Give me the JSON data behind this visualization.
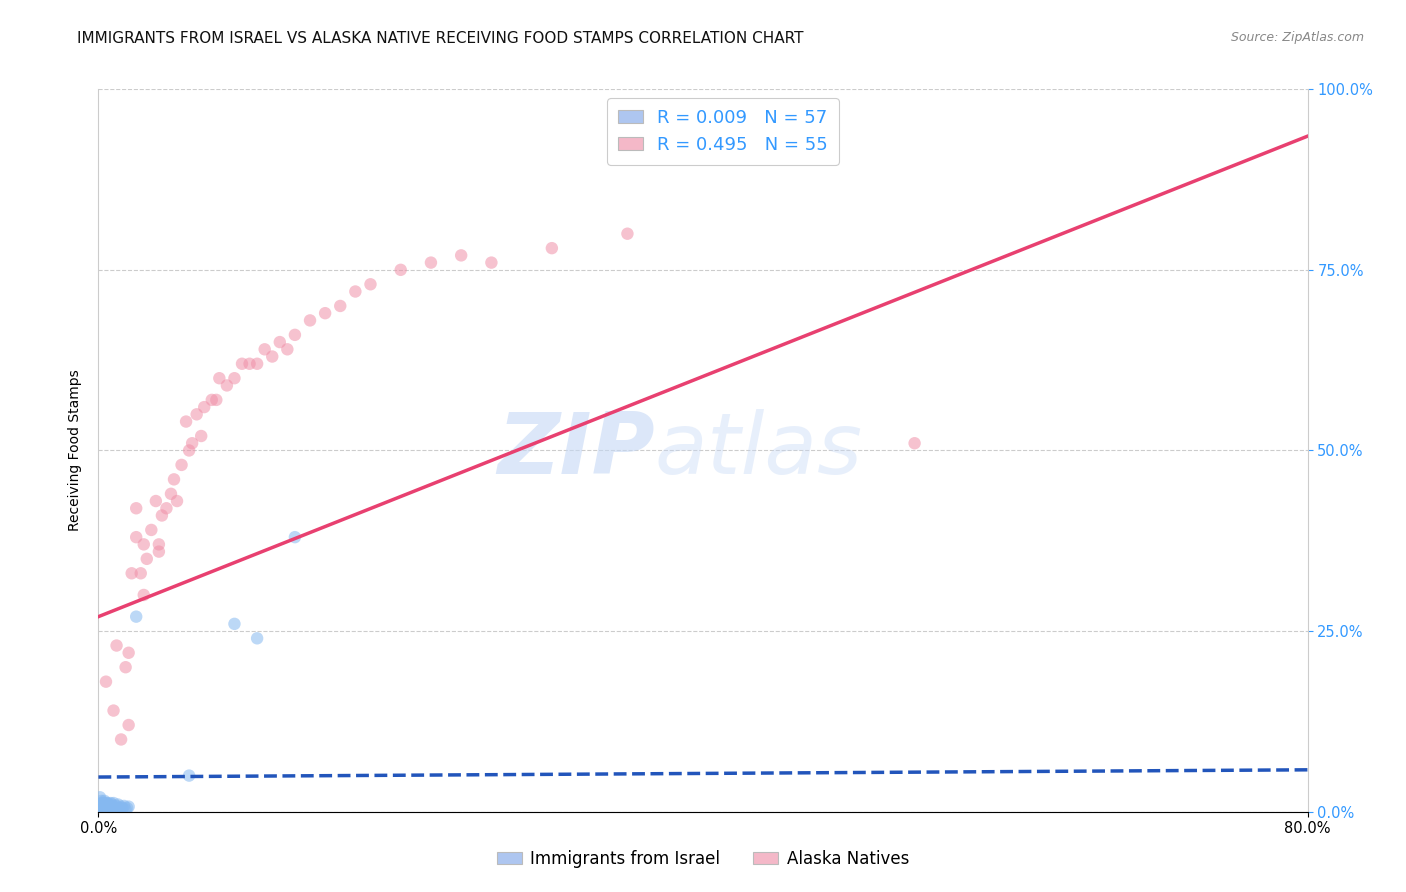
{
  "title": "IMMIGRANTS FROM ISRAEL VS ALASKA NATIVE RECEIVING FOOD STAMPS CORRELATION CHART",
  "source": "Source: ZipAtlas.com",
  "ylabel": "Receiving Food Stamps",
  "xlim": [
    0,
    0.8
  ],
  "ylim": [
    0,
    1.0
  ],
  "legend_entries": [
    {
      "label": "R = 0.009   N = 57",
      "color": "#aec6f0"
    },
    {
      "label": "R = 0.495   N = 55",
      "color": "#f4b8c8"
    }
  ],
  "legend_bottom": [
    "Immigrants from Israel",
    "Alaska Natives"
  ],
  "blue_scatter_x": [
    0.001,
    0.001,
    0.001,
    0.001,
    0.002,
    0.002,
    0.002,
    0.002,
    0.002,
    0.003,
    0.003,
    0.003,
    0.003,
    0.003,
    0.003,
    0.004,
    0.004,
    0.004,
    0.004,
    0.005,
    0.005,
    0.005,
    0.005,
    0.006,
    0.006,
    0.006,
    0.007,
    0.007,
    0.008,
    0.008,
    0.008,
    0.009,
    0.009,
    0.01,
    0.01,
    0.011,
    0.012,
    0.012,
    0.013,
    0.014,
    0.015,
    0.016,
    0.017,
    0.018,
    0.019,
    0.02,
    0.001,
    0.001,
    0.001,
    0.002,
    0.003,
    0.004,
    0.025,
    0.06,
    0.105,
    0.09,
    0.13
  ],
  "blue_scatter_y": [
    0.02,
    0.01,
    0.005,
    0.008,
    0.015,
    0.012,
    0.008,
    0.005,
    0.003,
    0.01,
    0.008,
    0.005,
    0.003,
    0.012,
    0.007,
    0.01,
    0.007,
    0.004,
    0.015,
    0.008,
    0.005,
    0.012,
    0.003,
    0.008,
    0.005,
    0.012,
    0.007,
    0.01,
    0.005,
    0.008,
    0.012,
    0.005,
    0.01,
    0.007,
    0.012,
    0.005,
    0.008,
    0.003,
    0.01,
    0.005,
    0.007,
    0.005,
    0.008,
    0.003,
    0.005,
    0.007,
    0.001,
    0.002,
    0.003,
    0.001,
    0.002,
    0.001,
    0.27,
    0.05,
    0.24,
    0.26,
    0.38
  ],
  "pink_scatter_x": [
    0.005,
    0.01,
    0.012,
    0.015,
    0.018,
    0.02,
    0.02,
    0.022,
    0.025,
    0.025,
    0.028,
    0.03,
    0.03,
    0.032,
    0.035,
    0.038,
    0.04,
    0.04,
    0.042,
    0.045,
    0.048,
    0.05,
    0.052,
    0.055,
    0.058,
    0.06,
    0.062,
    0.065,
    0.068,
    0.07,
    0.075,
    0.078,
    0.08,
    0.085,
    0.09,
    0.095,
    0.1,
    0.105,
    0.11,
    0.115,
    0.12,
    0.125,
    0.13,
    0.14,
    0.15,
    0.16,
    0.17,
    0.18,
    0.2,
    0.22,
    0.24,
    0.26,
    0.3,
    0.35,
    0.54
  ],
  "pink_scatter_y": [
    0.18,
    0.14,
    0.23,
    0.1,
    0.2,
    0.12,
    0.22,
    0.33,
    0.38,
    0.42,
    0.33,
    0.3,
    0.37,
    0.35,
    0.39,
    0.43,
    0.36,
    0.37,
    0.41,
    0.42,
    0.44,
    0.46,
    0.43,
    0.48,
    0.54,
    0.5,
    0.51,
    0.55,
    0.52,
    0.56,
    0.57,
    0.57,
    0.6,
    0.59,
    0.6,
    0.62,
    0.62,
    0.62,
    0.64,
    0.63,
    0.65,
    0.64,
    0.66,
    0.68,
    0.69,
    0.7,
    0.72,
    0.73,
    0.75,
    0.76,
    0.77,
    0.76,
    0.78,
    0.8,
    0.51
  ],
  "blue_line_x": [
    0.0,
    0.8
  ],
  "blue_line_y": [
    0.048,
    0.058
  ],
  "pink_line_x": [
    0.0,
    0.8
  ],
  "pink_line_y": [
    0.27,
    0.935
  ],
  "watermark_zip": "ZIP",
  "watermark_atlas": "atlas",
  "scatter_size": 80,
  "scatter_alpha": 0.55,
  "blue_color": "#85b8f0",
  "pink_color": "#f090a8",
  "blue_line_color": "#2255bb",
  "pink_line_color": "#e84070",
  "grid_color": "#cccccc",
  "background_color": "#ffffff",
  "title_fontsize": 11,
  "axis_label_fontsize": 10
}
